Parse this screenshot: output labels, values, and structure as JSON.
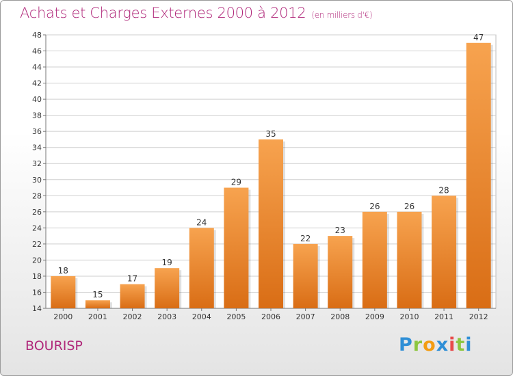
{
  "header": {
    "title": "Achats et Charges Externes 2000 à 2012",
    "subtitle": "(en milliers d'€)"
  },
  "footer": {
    "commune": "BOURISP",
    "logo_letters": [
      "P",
      "r",
      "o",
      "x",
      "i",
      "t",
      "i"
    ]
  },
  "colors": {
    "title": "#b0287a",
    "bar_top": "#f7a34f",
    "bar_bottom": "#d96d15",
    "grid": "#cfcfcf"
  },
  "chart_data": {
    "type": "bar",
    "title": "Achats et Charges Externes 2000 à 2012",
    "subtitle": "(en milliers d'€)",
    "xlabel": "",
    "ylabel": "",
    "categories": [
      "2000",
      "2001",
      "2002",
      "2003",
      "2004",
      "2005",
      "2006",
      "2007",
      "2008",
      "2009",
      "2010",
      "2011",
      "2012"
    ],
    "values": [
      18,
      15,
      17,
      19,
      24,
      29,
      35,
      22,
      23,
      26,
      26,
      28,
      47
    ],
    "ylim": [
      14,
      48
    ],
    "yticks": [
      14,
      16,
      18,
      20,
      22,
      24,
      26,
      28,
      30,
      32,
      34,
      36,
      38,
      40,
      42,
      44,
      46,
      48
    ],
    "grid": true,
    "legend": "none"
  }
}
